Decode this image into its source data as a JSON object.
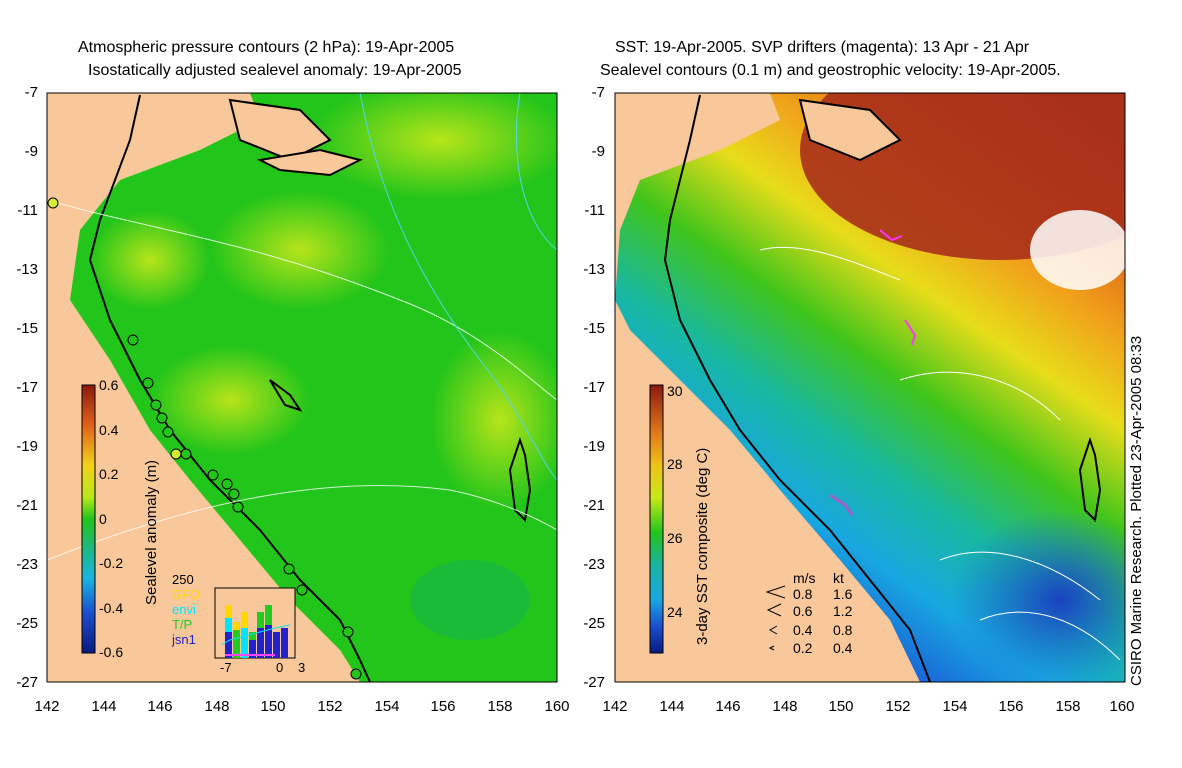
{
  "left_panel": {
    "title_line1": "Atmospheric pressure contours (2 hPa): 19-Apr-2005",
    "title_line2": "Isostatically adjusted sealevel anomaly: 19-Apr-2005",
    "colorbar_label": "Sealevel anomaly (m)",
    "colorbar_ticks": [
      "0.6",
      "0.4",
      "0.2",
      "0",
      "-0.2",
      "-0.4",
      "-0.6"
    ],
    "histogram": {
      "ymax_label": "250",
      "legend": [
        {
          "label": "GFO",
          "color": "#ffd700"
        },
        {
          "label": "envi",
          "color": "#00e5ff"
        },
        {
          "label": "T/P",
          "color": "#22cc22"
        },
        {
          "label": "jsn1",
          "color": "#2222cc"
        }
      ],
      "x_ticks": [
        "-7",
        "0",
        "3"
      ]
    }
  },
  "right_panel": {
    "title_line1": "SST: 19-Apr-2005. SVP drifters (magenta): 13 Apr - 21 Apr",
    "title_line2": "Sealevel contours (0.1 m) and geostrophic velocity: 19-Apr-2005.",
    "colorbar_label": "3-day SST composite (deg C)",
    "colorbar_ticks": [
      "30",
      "28",
      "26",
      "24"
    ],
    "velocity_legend": {
      "header_ms": "m/s",
      "header_kt": "kt",
      "rows": [
        {
          "ms": "0.8",
          "kt": "1.6"
        },
        {
          "ms": "0.6",
          "kt": "1.2"
        },
        {
          "ms": "0.4",
          "kt": "0.8"
        },
        {
          "ms": "0.2",
          "kt": "0.4"
        }
      ]
    }
  },
  "axes": {
    "y_ticks": [
      "-7",
      "-9",
      "-11",
      "-13",
      "-15",
      "-17",
      "-19",
      "-21",
      "-23",
      "-25",
      "-27"
    ],
    "x_ticks": [
      "142",
      "144",
      "146",
      "148",
      "150",
      "152",
      "154",
      "156",
      "158",
      "160"
    ]
  },
  "credit": "CSIRO Marine Research. Plotted 23-Apr-2005 08:33",
  "colors": {
    "land": "#f9c89a",
    "sea_green": "#22c51a",
    "sst_warm": "#b03a18",
    "sst_cool": "#1f6fd8"
  }
}
